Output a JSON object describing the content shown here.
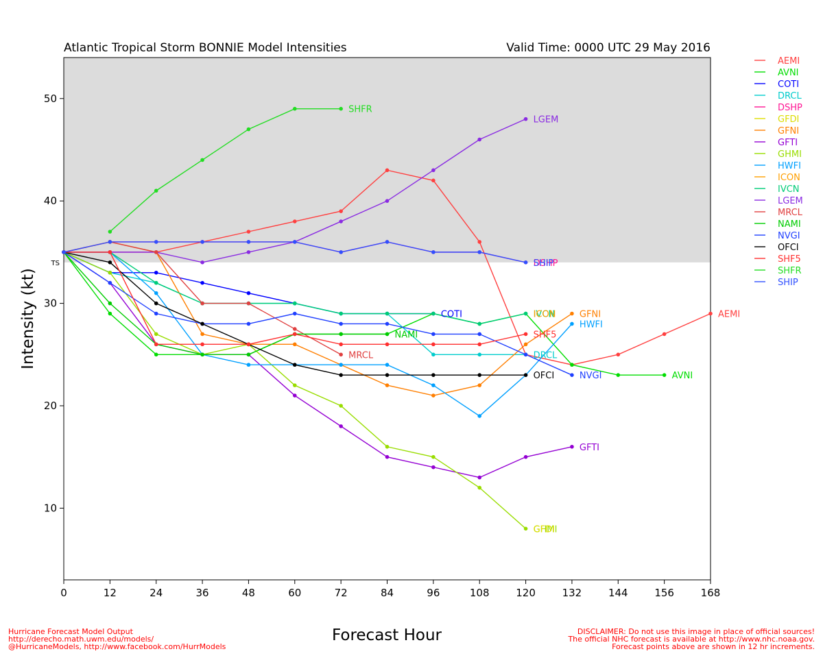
{
  "header": {
    "title": "Atlantic Tropical Storm BONNIE Model Intensities",
    "valid_time": "Valid Time: 0000 UTC 29 May 2016"
  },
  "footer": {
    "credit_lines": [
      "Hurricane Forecast Model Output",
      "http://derecho.math.uwm.edu/models/",
      "@HurricaneModels, http://www.facebook.com/HurrModels"
    ],
    "disclaimer_lines": [
      "DISCLAIMER: Do not use this image in place of official sources!",
      "The official NHC forecast is available at http://www.nhc.noaa.gov.",
      "Forecast points above are shown in 12 hr increments."
    ]
  },
  "chart_data": {
    "type": "line",
    "title": "Atlantic Tropical Storm BONNIE Model Intensities",
    "xlabel": "Forecast Hour",
    "ylabel": "Intensity (kt)",
    "xlim": [
      0,
      168
    ],
    "ylim": [
      3,
      54
    ],
    "xticks": [
      0,
      12,
      24,
      36,
      48,
      60,
      72,
      84,
      96,
      108,
      120,
      132,
      144,
      156,
      168
    ],
    "yticks": [
      10,
      20,
      30,
      40,
      50
    ],
    "threshold": {
      "label": "TS",
      "value": 34,
      "shaded": "above"
    },
    "grid": false,
    "legend_position": "right, outside plot",
    "series": [
      {
        "name": "AEMI",
        "color": "#ff4040",
        "x": [
          0,
          12,
          24,
          36,
          48,
          60,
          72,
          84,
          96,
          108,
          120,
          132,
          144,
          156,
          168
        ],
        "y": [
          35,
          35,
          35,
          36,
          37,
          38,
          39,
          43,
          42,
          36,
          25,
          24,
          25,
          27,
          29
        ]
      },
      {
        "name": "AVNI",
        "color": "#00dd00",
        "x": [
          0,
          12,
          24,
          36,
          48,
          60,
          72,
          84,
          96,
          108,
          120,
          132,
          144,
          156
        ],
        "y": [
          35,
          29,
          25,
          25,
          25,
          27,
          27,
          27,
          29,
          28,
          29,
          24,
          23,
          23
        ]
      },
      {
        "name": "COTI",
        "color": "#0000ff",
        "x": [
          0,
          12,
          24,
          36,
          48,
          60,
          72,
          84,
          96
        ],
        "y": [
          35,
          33,
          33,
          32,
          31,
          30,
          29,
          29,
          29
        ]
      },
      {
        "name": "DRCL",
        "color": "#00cccc",
        "x": [
          0,
          12,
          24,
          36,
          48,
          60,
          72,
          84,
          96,
          108,
          120
        ],
        "y": [
          35,
          33,
          32,
          30,
          30,
          30,
          29,
          29,
          25,
          25,
          25
        ]
      },
      {
        "name": "DSHP",
        "color": "#ff1493",
        "x": [
          0,
          12,
          24,
          36,
          48,
          60,
          72,
          84,
          96,
          108,
          120
        ],
        "y": [
          35,
          36,
          36,
          36,
          36,
          36,
          35,
          36,
          35,
          35,
          34
        ]
      },
      {
        "name": "GFDI",
        "color": "#dddd00",
        "x": [],
        "y": []
      },
      {
        "name": "GFNI",
        "color": "#ff7f00",
        "x": [
          0,
          12,
          24,
          36,
          48,
          60,
          72,
          84,
          96,
          108,
          120,
          132
        ],
        "y": [
          35,
          36,
          35,
          27,
          26,
          26,
          24,
          22,
          21,
          22,
          26,
          29
        ]
      },
      {
        "name": "GFTI",
        "color": "#9400d3",
        "x": [
          0,
          12,
          24,
          36,
          48,
          60,
          72,
          84,
          96,
          108,
          120,
          132
        ],
        "y": [
          35,
          32,
          26,
          25,
          25,
          21,
          18,
          15,
          14,
          13,
          15,
          16
        ]
      },
      {
        "name": "GHMI",
        "color": "#99dd00",
        "x": [
          0,
          12,
          24,
          36,
          48,
          60,
          72,
          84,
          96,
          108,
          120
        ],
        "y": [
          35,
          33,
          27,
          25,
          26,
          22,
          20,
          16,
          15,
          12,
          8
        ]
      },
      {
        "name": "HWFI",
        "color": "#00a0ff",
        "x": [
          0,
          12,
          24,
          36,
          48,
          60,
          72,
          84,
          96,
          108,
          120,
          132
        ],
        "y": [
          35,
          35,
          31,
          25,
          24,
          24,
          24,
          24,
          22,
          19,
          23,
          28
        ]
      },
      {
        "name": "ICON",
        "color": "#ff9f00",
        "x": [],
        "y": []
      },
      {
        "name": "IVCN",
        "color": "#00cc77",
        "x": [
          0,
          12,
          24,
          36,
          48,
          60,
          72,
          84,
          96,
          108,
          120
        ],
        "y": [
          35,
          35,
          32,
          30,
          30,
          30,
          29,
          29,
          29,
          28,
          29
        ]
      },
      {
        "name": "LGEM",
        "color": "#8a2be2",
        "x": [
          0,
          12,
          24,
          36,
          48,
          60,
          72,
          84,
          96,
          108,
          120
        ],
        "y": [
          35,
          35,
          35,
          34,
          35,
          36,
          38,
          40,
          43,
          46,
          48
        ]
      },
      {
        "name": "MRCL",
        "color": "#e04040",
        "x": [
          0,
          12,
          24,
          36,
          48,
          60,
          72
        ],
        "y": [
          35,
          36,
          35,
          30,
          30,
          27.5,
          25
        ]
      },
      {
        "name": "NAMI",
        "color": "#00cc00",
        "x": [
          0,
          12,
          24,
          36,
          48,
          60,
          72,
          84
        ],
        "y": [
          35,
          30,
          26,
          25,
          25,
          27,
          27,
          27
        ]
      },
      {
        "name": "NVGI",
        "color": "#2040ff",
        "x": [
          0,
          12,
          24,
          36,
          48,
          60,
          72,
          84,
          96,
          108,
          120,
          132
        ],
        "y": [
          35,
          32,
          29,
          28,
          28,
          29,
          28,
          28,
          27,
          27,
          25,
          23
        ]
      },
      {
        "name": "OFCI",
        "color": "#000000",
        "x": [
          0,
          12,
          24,
          36,
          48,
          60,
          72,
          84,
          96,
          108,
          120
        ],
        "y": [
          35,
          34,
          30,
          28,
          26,
          24,
          23,
          23,
          23,
          23,
          23
        ]
      },
      {
        "name": "SHF5",
        "color": "#ff3030",
        "x": [
          0,
          12,
          24,
          36,
          48,
          60,
          72,
          84,
          96,
          108,
          120
        ],
        "y": [
          35,
          35,
          26,
          26,
          26,
          27,
          26,
          26,
          26,
          26,
          27
        ]
      },
      {
        "name": "SHFR",
        "color": "#22dd22",
        "x": [
          12,
          24,
          36,
          48,
          60,
          72
        ],
        "y": [
          37,
          41,
          44,
          47,
          49,
          49
        ]
      },
      {
        "name": "SHIP",
        "color": "#3050ff",
        "x": [
          0,
          12,
          24,
          36,
          48,
          60,
          72,
          84,
          96,
          108,
          120
        ],
        "y": [
          35,
          36,
          36,
          36,
          36,
          36,
          35,
          36,
          35,
          35,
          34
        ]
      }
    ],
    "end_labels": [
      {
        "text": "SHFR",
        "series": "SHFR"
      },
      {
        "text": "LGEM",
        "series": "LGEM"
      },
      {
        "text": "DSHP",
        "series": "DSHP"
      },
      {
        "text": "SHIP",
        "series": "SHIP"
      },
      {
        "text": "COTI",
        "series": "COTI"
      },
      {
        "text": "IVCN",
        "series": "IVCN"
      },
      {
        "text": "ICON",
        "series": "IVCN",
        "color_series": "ICON"
      },
      {
        "text": "GFNI",
        "series": "GFNI"
      },
      {
        "text": "HWFI",
        "series": "HWFI"
      },
      {
        "text": "AEMI",
        "series": "AEMI"
      },
      {
        "text": "SHF5",
        "series": "SHF5"
      },
      {
        "text": "NAMI",
        "series": "NAMI"
      },
      {
        "text": "DRCL",
        "series": "DRCL"
      },
      {
        "text": "MRCL",
        "series": "MRCL"
      },
      {
        "text": "OFCI",
        "series": "OFCI"
      },
      {
        "text": "NVGI",
        "series": "NVGI"
      },
      {
        "text": "AVNI",
        "series": "AVNI"
      },
      {
        "text": "GFTI",
        "series": "GFTI"
      },
      {
        "text": "GHMI",
        "series": "GHMI"
      },
      {
        "text": "GFDI",
        "series": "GHMI",
        "color_series": "GFDI"
      }
    ]
  }
}
